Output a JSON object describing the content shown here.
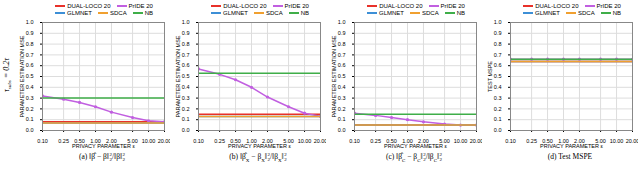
{
  "row_label": [
    {
      "text": "τ"
    },
    {
      "sub": "subs"
    },
    {
      "text": " = 0.2τ"
    }
  ],
  "chart_data": [
    {
      "type": "line",
      "caption": [
        {
          "text": "(a) ‖β̂ − β‖"
        },
        {
          "sup": "2",
          "sub": "2"
        },
        {
          "text": "/‖β‖"
        },
        {
          "sup": "2",
          "sub": "2"
        }
      ],
      "x_label": "PRIVACY PARAMETER ε",
      "y_label": "PARAMETER ESTIMATION MSE",
      "log": "x",
      "grid": true,
      "legend": "top",
      "x": [
        0.1,
        0.25,
        0.5,
        1,
        2,
        5,
        10,
        20
      ],
      "xlim": [
        0.1,
        20
      ],
      "xticks": [
        {
          "value": 0.1,
          "label": "0.10"
        },
        {
          "value": 0.25,
          "label": "0.25"
        },
        {
          "value": 0.5,
          "label": "0.50"
        },
        {
          "value": 1,
          "label": "1.00"
        },
        {
          "value": 2,
          "label": "2.00"
        },
        {
          "value": 5,
          "label": "5.00"
        },
        {
          "value": 10,
          "label": "10.00"
        },
        {
          "value": 20,
          "label": "20.00"
        }
      ],
      "ylim": [
        0,
        1
      ],
      "yticks": [
        {
          "value": 0,
          "label": "0.0"
        },
        {
          "value": 0.1,
          "label": "0.1"
        },
        {
          "value": 0.2,
          "label": "0.2"
        },
        {
          "value": 0.3,
          "label": "0.3"
        },
        {
          "value": 0.4,
          "label": "0.4"
        },
        {
          "value": 0.5,
          "label": "0.5"
        },
        {
          "value": 0.6,
          "label": "0.6"
        },
        {
          "value": 0.7,
          "label": "0.7"
        },
        {
          "value": 0.8,
          "label": "0.8"
        },
        {
          "value": 0.9,
          "label": "0.9"
        },
        {
          "value": 1,
          "label": "1.0"
        }
      ],
      "series": [
        {
          "name": "DUAL-LOCO 20",
          "color": "#e8312a",
          "values": [
            0.08,
            0.08,
            0.08,
            0.08,
            0.08,
            0.08,
            0.08,
            0.08
          ]
        },
        {
          "name": "PrIDE 20",
          "color": "#c15fe0",
          "marker": "circle",
          "values": [
            0.32,
            0.29,
            0.26,
            0.22,
            0.17,
            0.12,
            0.09,
            0.08
          ]
        },
        {
          "name": "GLMNET",
          "color": "#3d8fd6",
          "values": [
            0.07,
            0.07,
            0.07,
            0.07,
            0.07,
            0.07,
            0.07,
            0.07
          ]
        },
        {
          "name": "SDCA",
          "color": "#f0a030",
          "values": [
            0.07,
            0.07,
            0.07,
            0.07,
            0.07,
            0.07,
            0.07,
            0.07
          ]
        },
        {
          "name": "NB",
          "color": "#3fae49",
          "values": [
            0.3,
            0.3,
            0.3,
            0.3,
            0.3,
            0.3,
            0.3,
            0.3
          ]
        }
      ]
    },
    {
      "type": "line",
      "caption": [
        {
          "text": "(b) ‖β̂"
        },
        {
          "sub": "X"
        },
        {
          "text": " − β"
        },
        {
          "sub": "X"
        },
        {
          "text": "‖"
        },
        {
          "sup": "2",
          "sub": "2"
        },
        {
          "text": "/‖β"
        },
        {
          "sub": "X"
        },
        {
          "text": "‖"
        },
        {
          "sup": "2",
          "sub": "2"
        }
      ],
      "x_label": "PRIVACY PARAMETER ε",
      "y_label": "PARAMETER ESTIMATION MSE",
      "log": "x",
      "grid": true,
      "legend": "top",
      "x": [
        0.1,
        0.25,
        0.5,
        1,
        2,
        5,
        10,
        20
      ],
      "xlim": [
        0.1,
        20
      ],
      "xticks": [
        {
          "value": 0.1,
          "label": "0.10"
        },
        {
          "value": 0.25,
          "label": "0.25"
        },
        {
          "value": 0.5,
          "label": "0.50"
        },
        {
          "value": 1,
          "label": "1.00"
        },
        {
          "value": 2,
          "label": "2.00"
        },
        {
          "value": 5,
          "label": "5.00"
        },
        {
          "value": 10,
          "label": "10.00"
        },
        {
          "value": 20,
          "label": "20.00"
        }
      ],
      "ylim": [
        0,
        1
      ],
      "yticks": [
        {
          "value": 0,
          "label": "0.0"
        },
        {
          "value": 0.1,
          "label": "0.1"
        },
        {
          "value": 0.2,
          "label": "0.2"
        },
        {
          "value": 0.3,
          "label": "0.3"
        },
        {
          "value": 0.4,
          "label": "0.4"
        },
        {
          "value": 0.5,
          "label": "0.5"
        },
        {
          "value": 0.6,
          "label": "0.6"
        },
        {
          "value": 0.7,
          "label": "0.7"
        },
        {
          "value": 0.8,
          "label": "0.8"
        },
        {
          "value": 0.9,
          "label": "0.9"
        },
        {
          "value": 1,
          "label": "1.0"
        }
      ],
      "series": [
        {
          "name": "DUAL-LOCO 20",
          "color": "#e8312a",
          "values": [
            0.15,
            0.15,
            0.15,
            0.15,
            0.15,
            0.15,
            0.15,
            0.15
          ]
        },
        {
          "name": "PrIDE 20",
          "color": "#c15fe0",
          "marker": "circle",
          "values": [
            0.57,
            0.52,
            0.47,
            0.4,
            0.31,
            0.22,
            0.16,
            0.13
          ]
        },
        {
          "name": "GLMNET",
          "color": "#3d8fd6",
          "values": [
            0.13,
            0.13,
            0.13,
            0.13,
            0.13,
            0.13,
            0.13,
            0.13
          ]
        },
        {
          "name": "SDCA",
          "color": "#f0a030",
          "values": [
            0.13,
            0.13,
            0.13,
            0.13,
            0.13,
            0.13,
            0.13,
            0.13
          ]
        },
        {
          "name": "NB",
          "color": "#3fae49",
          "values": [
            0.53,
            0.53,
            0.53,
            0.53,
            0.53,
            0.53,
            0.53,
            0.53
          ]
        }
      ]
    },
    {
      "type": "line",
      "caption": [
        {
          "text": "(c) ‖β̂"
        },
        {
          "sub": "C"
        },
        {
          "text": " − β"
        },
        {
          "sub": "C"
        },
        {
          "text": "‖"
        },
        {
          "sup": "2",
          "sub": "2"
        },
        {
          "text": "/‖β"
        },
        {
          "sub": "C"
        },
        {
          "text": "‖"
        },
        {
          "sup": "2",
          "sub": "2"
        }
      ],
      "x_label": "PRIVACY PARAMETER ε",
      "y_label": "PARAMETER ESTIMATION MSE",
      "log": "x",
      "grid": true,
      "legend": "top",
      "x": [
        0.1,
        0.25,
        0.5,
        1,
        2,
        5,
        10,
        20
      ],
      "xlim": [
        0.1,
        20
      ],
      "xticks": [
        {
          "value": 0.1,
          "label": "0.10"
        },
        {
          "value": 0.25,
          "label": "0.25"
        },
        {
          "value": 0.5,
          "label": "0.50"
        },
        {
          "value": 1,
          "label": "1.00"
        },
        {
          "value": 2,
          "label": "2.00"
        },
        {
          "value": 5,
          "label": "5.00"
        },
        {
          "value": 10,
          "label": "10.00"
        },
        {
          "value": 20,
          "label": "20.00"
        }
      ],
      "ylim": [
        0,
        1
      ],
      "yticks": [
        {
          "value": 0,
          "label": "0.0"
        },
        {
          "value": 0.1,
          "label": "0.1"
        },
        {
          "value": 0.2,
          "label": "0.2"
        },
        {
          "value": 0.3,
          "label": "0.3"
        },
        {
          "value": 0.4,
          "label": "0.4"
        },
        {
          "value": 0.5,
          "label": "0.5"
        },
        {
          "value": 0.6,
          "label": "0.6"
        },
        {
          "value": 0.7,
          "label": "0.7"
        },
        {
          "value": 0.8,
          "label": "0.8"
        },
        {
          "value": 0.9,
          "label": "0.9"
        },
        {
          "value": 1,
          "label": "1.0"
        }
      ],
      "series": [
        {
          "name": "DUAL-LOCO 20",
          "color": "#e8312a",
          "values": [
            0.05,
            0.05,
            0.05,
            0.05,
            0.05,
            0.05,
            0.05,
            0.05
          ]
        },
        {
          "name": "PrIDE 20",
          "color": "#c15fe0",
          "marker": "circle",
          "values": [
            0.16,
            0.14,
            0.12,
            0.1,
            0.08,
            0.06,
            0.05,
            0.05
          ]
        },
        {
          "name": "GLMNET",
          "color": "#3d8fd6",
          "values": [
            0.05,
            0.05,
            0.05,
            0.05,
            0.05,
            0.05,
            0.05,
            0.05
          ]
        },
        {
          "name": "SDCA",
          "color": "#f0a030",
          "values": [
            0.05,
            0.05,
            0.05,
            0.05,
            0.05,
            0.05,
            0.05,
            0.05
          ]
        },
        {
          "name": "NB",
          "color": "#3fae49",
          "values": [
            0.15,
            0.15,
            0.15,
            0.15,
            0.15,
            0.15,
            0.15,
            0.15
          ]
        }
      ]
    },
    {
      "type": "line",
      "caption": [
        {
          "text": "(d) Test MSPE"
        }
      ],
      "x_label": "PRIVACY PARAMETER ε",
      "y_label": "TEST MSPE",
      "log": "x",
      "grid": true,
      "legend": "top",
      "x": [
        0.1,
        0.25,
        0.5,
        1,
        2,
        5,
        10,
        20
      ],
      "xlim": [
        0.1,
        20
      ],
      "xticks": [
        {
          "value": 0.1,
          "label": "0.10"
        },
        {
          "value": 0.25,
          "label": "0.25"
        },
        {
          "value": 0.5,
          "label": "0.50"
        },
        {
          "value": 1,
          "label": "1.00"
        },
        {
          "value": 2,
          "label": "2.00"
        },
        {
          "value": 5,
          "label": "5.00"
        },
        {
          "value": 10,
          "label": "10.00"
        },
        {
          "value": 20,
          "label": "20.00"
        }
      ],
      "ylim": [
        0,
        1
      ],
      "yticks": [
        {
          "value": 0,
          "label": "0.0"
        },
        {
          "value": 0.1,
          "label": "0.1"
        },
        {
          "value": 0.2,
          "label": "0.2"
        },
        {
          "value": 0.3,
          "label": "0.3"
        },
        {
          "value": 0.4,
          "label": "0.4"
        },
        {
          "value": 0.5,
          "label": "0.5"
        },
        {
          "value": 0.6,
          "label": "0.6"
        },
        {
          "value": 0.7,
          "label": "0.7"
        },
        {
          "value": 0.8,
          "label": "0.8"
        },
        {
          "value": 0.9,
          "label": "0.9"
        },
        {
          "value": 1,
          "label": "1.0"
        }
      ],
      "series": [
        {
          "name": "DUAL-LOCO 20",
          "color": "#e8312a",
          "values": [
            0.64,
            0.64,
            0.64,
            0.64,
            0.64,
            0.64,
            0.64,
            0.64
          ]
        },
        {
          "name": "PrIDE 20",
          "color": "#c15fe0",
          "marker": "circle",
          "values": [
            0.66,
            0.66,
            0.66,
            0.66,
            0.66,
            0.66,
            0.66,
            0.66
          ]
        },
        {
          "name": "GLMNET",
          "color": "#3d8fd6",
          "values": [
            0.64,
            0.64,
            0.64,
            0.64,
            0.64,
            0.64,
            0.64,
            0.64
          ]
        },
        {
          "name": "SDCA",
          "color": "#f0a030",
          "values": [
            0.64,
            0.64,
            0.64,
            0.64,
            0.64,
            0.64,
            0.64,
            0.64
          ]
        },
        {
          "name": "NB",
          "color": "#3fae49",
          "values": [
            0.66,
            0.66,
            0.66,
            0.66,
            0.66,
            0.66,
            0.66,
            0.66
          ]
        }
      ]
    }
  ]
}
